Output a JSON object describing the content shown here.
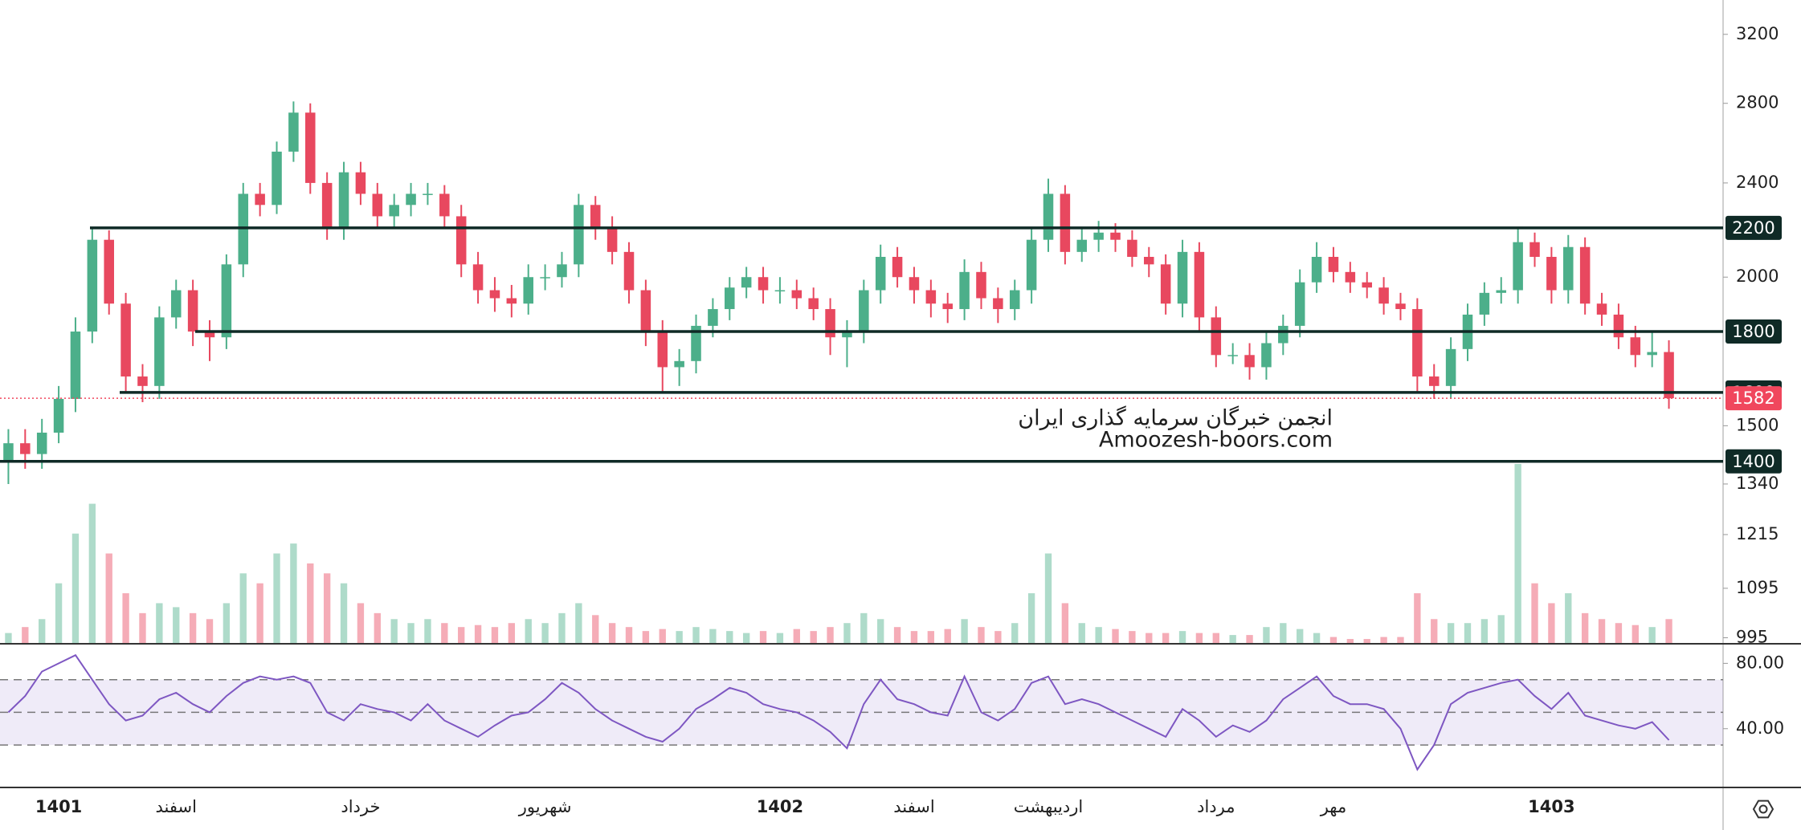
{
  "chart_data": {
    "type": "candlestick",
    "categories": [
      null,
      null,
      null,
      "1401",
      null,
      null,
      null,
      null,
      null,
      null,
      "اسفند",
      null,
      null,
      null,
      null,
      null,
      null,
      null,
      null,
      null,
      null,
      "خرداد",
      null,
      null,
      null,
      null,
      null,
      null,
      null,
      null,
      null,
      null,
      "شهریور",
      null,
      null,
      null,
      null,
      null,
      null,
      null,
      null,
      null,
      null,
      null,
      null,
      null,
      "1402",
      null,
      null,
      null,
      null,
      null,
      null,
      null,
      "اسفند",
      null,
      null,
      null,
      null,
      null,
      null,
      null,
      "اردیبهشت",
      null,
      null,
      null,
      null,
      null,
      null,
      null,
      null,
      null,
      "مرداد",
      null,
      null,
      null,
      null,
      null,
      null,
      "مهر",
      null,
      null,
      null,
      null,
      null,
      null,
      null,
      null,
      null,
      null,
      null,
      null,
      "1403",
      null,
      null,
      null,
      null,
      null,
      null,
      null
    ],
    "open": [
      1400,
      1450,
      1420,
      1480,
      1580,
      1800,
      2150,
      1900,
      1650,
      1620,
      1850,
      1950,
      1800,
      1780,
      2050,
      2350,
      2300,
      2550,
      2750,
      2400,
      2200,
      2450,
      2350,
      2250,
      2300,
      2350,
      2350,
      2250,
      2050,
      1950,
      1920,
      1900,
      2000,
      2000,
      2050,
      2300,
      2200,
      2100,
      1950,
      1800,
      1680,
      1700,
      1820,
      1880,
      1960,
      2000,
      1950,
      1950,
      1920,
      1880,
      1780,
      1800,
      1950,
      2080,
      2000,
      1950,
      1900,
      1880,
      2020,
      1920,
      1880,
      1950,
      2150,
      2350,
      2100,
      2150,
      2180,
      2150,
      2080,
      2050,
      1900,
      2100,
      1850,
      1720,
      1720,
      1680,
      1760,
      1820,
      1980,
      2080,
      2020,
      1980,
      1960,
      1900,
      1880,
      1650,
      1620,
      1740,
      1860,
      1940,
      1950,
      2140,
      2080,
      1950,
      2120,
      1900,
      1860,
      1780,
      1720,
      1730
    ],
    "high": [
      1490,
      1490,
      1520,
      1620,
      1850,
      2200,
      2190,
      1940,
      1690,
      1890,
      1990,
      1990,
      1840,
      2090,
      2400,
      2400,
      2600,
      2810,
      2800,
      2450,
      2500,
      2500,
      2400,
      2350,
      2400,
      2400,
      2390,
      2300,
      2100,
      2000,
      1970,
      2050,
      2050,
      2100,
      2350,
      2340,
      2250,
      2140,
      1990,
      1840,
      1740,
      1860,
      1920,
      2000,
      2040,
      2040,
      2000,
      1990,
      1960,
      1920,
      1840,
      1990,
      2130,
      2120,
      2040,
      1990,
      1940,
      2070,
      2060,
      1960,
      1990,
      2200,
      2420,
      2390,
      2200,
      2230,
      2220,
      2190,
      2120,
      2090,
      2150,
      2140,
      1890,
      1760,
      1760,
      1800,
      1860,
      2030,
      2140,
      2120,
      2060,
      2020,
      2000,
      1940,
      1920,
      1690,
      1780,
      1900,
      1980,
      2000,
      2200,
      2180,
      2120,
      2170,
      2160,
      1940,
      1900,
      1820,
      1800,
      1770
    ],
    "low": [
      1340,
      1380,
      1380,
      1450,
      1540,
      1760,
      1860,
      1600,
      1570,
      1580,
      1810,
      1750,
      1700,
      1740,
      2000,
      2250,
      2260,
      2500,
      2350,
      2150,
      2150,
      2300,
      2200,
      2200,
      2250,
      2300,
      2200,
      2000,
      1900,
      1870,
      1850,
      1860,
      1950,
      1960,
      2000,
      2150,
      2050,
      1900,
      1750,
      1600,
      1620,
      1660,
      1780,
      1840,
      1920,
      1900,
      1900,
      1880,
      1840,
      1720,
      1680,
      1760,
      1900,
      1960,
      1900,
      1850,
      1830,
      1840,
      1880,
      1830,
      1840,
      1900,
      2100,
      2050,
      2060,
      2100,
      2100,
      2040,
      2000,
      1860,
      1850,
      1800,
      1680,
      1690,
      1640,
      1640,
      1720,
      1780,
      1940,
      1980,
      1940,
      1920,
      1860,
      1840,
      1600,
      1580,
      1580,
      1700,
      1820,
      1900,
      1900,
      2040,
      1900,
      1900,
      1860,
      1820,
      1740,
      1680,
      1680,
      1550
    ],
    "close": [
      1450,
      1420,
      1480,
      1580,
      1800,
      2150,
      1900,
      1650,
      1620,
      1850,
      1950,
      1800,
      1780,
      2050,
      2350,
      2300,
      2550,
      2750,
      2400,
      2200,
      2450,
      2350,
      2250,
      2300,
      2350,
      2350,
      2250,
      2050,
      1950,
      1920,
      1900,
      2000,
      2000,
      2050,
      2300,
      2200,
      2100,
      1950,
      1800,
      1680,
      1700,
      1820,
      1880,
      1960,
      2000,
      1950,
      1950,
      1920,
      1880,
      1780,
      1800,
      1950,
      2080,
      2000,
      1950,
      1900,
      1880,
      2020,
      1920,
      1880,
      1950,
      2150,
      2350,
      2100,
      2150,
      2180,
      2150,
      2080,
      2050,
      1900,
      2100,
      1850,
      1720,
      1720,
      1680,
      1760,
      1820,
      1980,
      2080,
      2020,
      1980,
      1960,
      1900,
      1880,
      1650,
      1620,
      1740,
      1860,
      1940,
      1950,
      2140,
      2080,
      1950,
      2120,
      1900,
      1860,
      1780,
      1720,
      1730,
      1582
    ],
    "volume": [
      5,
      8,
      12,
      30,
      55,
      70,
      45,
      25,
      15,
      20,
      18,
      15,
      12,
      20,
      35,
      30,
      45,
      50,
      40,
      35,
      30,
      20,
      15,
      12,
      10,
      12,
      10,
      8,
      9,
      8,
      10,
      12,
      10,
      15,
      20,
      14,
      10,
      8,
      6,
      7,
      6,
      8,
      7,
      6,
      5,
      6,
      5,
      7,
      6,
      8,
      10,
      15,
      12,
      8,
      6,
      6,
      7,
      12,
      8,
      6,
      10,
      25,
      45,
      20,
      10,
      8,
      7,
      6,
      5,
      5,
      6,
      5,
      5,
      4,
      4,
      8,
      10,
      7,
      5,
      3,
      2,
      2,
      3,
      3,
      25,
      12,
      10,
      10,
      12,
      14,
      90,
      30,
      20,
      25,
      15,
      12,
      10,
      9,
      8,
      12
    ],
    "up_color": "#4caf8a",
    "down_color": "#e8485f",
    "ylim": [
      985,
      3420
    ],
    "log_scale": true,
    "yticks": [
      3200,
      2800,
      2400,
      2000,
      1500,
      1340,
      1215,
      1095,
      995
    ],
    "levels": [
      2200,
      1800,
      1600,
      1400
    ],
    "level_color": "#0f2a26",
    "last_price": 1582,
    "last_price_color": "#f0475d",
    "watermark": [
      "انجمن خبرگان سرمایه گذاری ایران",
      "Amoozesh-boors.com"
    ],
    "rsi": {
      "values": [
        50,
        60,
        75,
        80,
        85,
        70,
        55,
        45,
        48,
        58,
        62,
        55,
        50,
        60,
        68,
        72,
        70,
        72,
        68,
        50,
        45,
        55,
        52,
        50,
        45,
        55,
        45,
        40,
        35,
        42,
        48,
        50,
        58,
        68,
        62,
        52,
        45,
        40,
        35,
        32,
        40,
        52,
        58,
        65,
        62,
        55,
        52,
        50,
        45,
        38,
        28,
        55,
        70,
        58,
        55,
        50,
        48,
        72,
        50,
        45,
        52,
        68,
        72,
        55,
        58,
        55,
        50,
        45,
        40,
        35,
        52,
        45,
        35,
        42,
        38,
        45,
        58,
        65,
        72,
        60,
        55,
        55,
        52,
        40,
        15,
        30,
        55,
        62,
        65,
        68,
        70,
        60,
        52,
        62,
        48,
        45,
        42,
        40,
        44,
        33
      ],
      "color": "#7e57c2",
      "ylim": [
        4,
        91
      ],
      "yticks": [
        {
          "value": 80,
          "label": "80.00"
        },
        {
          "value": 40,
          "label": "40.00"
        }
      ],
      "band": [
        30,
        70
      ],
      "midline": 50
    }
  }
}
